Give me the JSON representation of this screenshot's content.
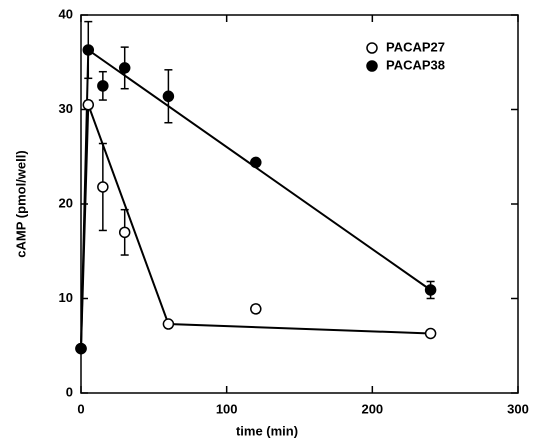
{
  "chart_data": {
    "type": "scatter",
    "xlabel": "time (min)",
    "ylabel": "cAMP (pmol/well)",
    "xlim": [
      0,
      300
    ],
    "xticks": [
      0,
      100,
      200,
      300
    ],
    "ylim": [
      0,
      40
    ],
    "yticks": [
      0,
      10,
      20,
      30,
      40
    ],
    "legend": "upper right",
    "series": [
      {
        "name": "PACAP27",
        "color": "#000000",
        "marker": "open",
        "x": [
          0,
          5,
          15,
          30,
          60,
          120,
          240
        ],
        "values": [
          4.7,
          30.5,
          21.8,
          17.0,
          7.3,
          8.9,
          6.3
        ],
        "errors": [
          null,
          0.4,
          4.6,
          2.4,
          0.3,
          0.4,
          0.3
        ]
      },
      {
        "name": "PACAP38",
        "color": "#000000",
        "marker": "filled",
        "x": [
          0,
          5,
          15,
          30,
          60,
          120,
          240
        ],
        "values": [
          4.7,
          36.3,
          32.5,
          34.4,
          31.4,
          24.4,
          10.9
        ],
        "errors": [
          null,
          3.0,
          1.5,
          2.2,
          2.8,
          0.3,
          0.9
        ]
      }
    ]
  }
}
